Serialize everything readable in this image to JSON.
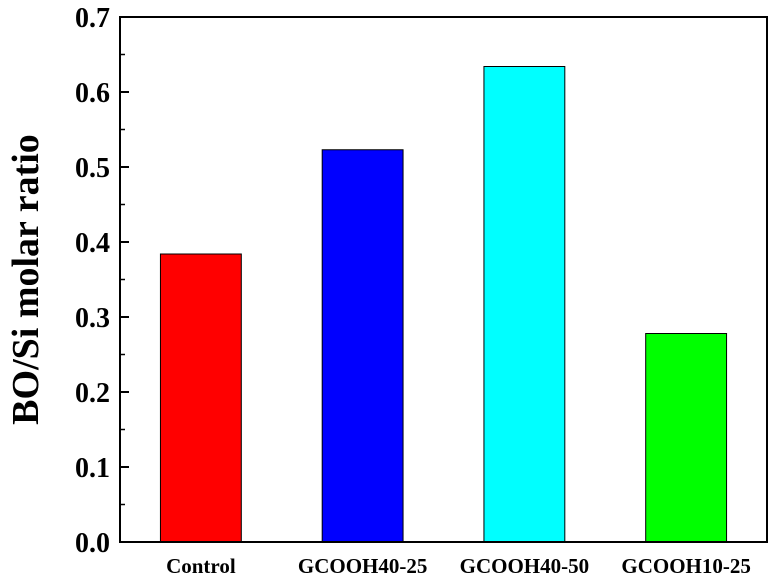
{
  "chart_data": {
    "type": "bar",
    "title": "",
    "xlabel": "",
    "ylabel": "BO/Si molar ratio",
    "ylim": [
      0.0,
      0.7
    ],
    "yticks": [
      "0.0",
      "0.1",
      "0.2",
      "0.3",
      "0.4",
      "0.5",
      "0.6",
      "0.7"
    ],
    "categories": [
      "Control",
      "GCOOH40-25",
      "GCOOH40-50",
      "GCOOH10-25"
    ],
    "values": [
      0.384,
      0.523,
      0.634,
      0.278
    ],
    "bar_colors": [
      "#ff0000",
      "#0000ff",
      "#00ffff",
      "#00ff00"
    ],
    "grid": false,
    "legend": false
  }
}
